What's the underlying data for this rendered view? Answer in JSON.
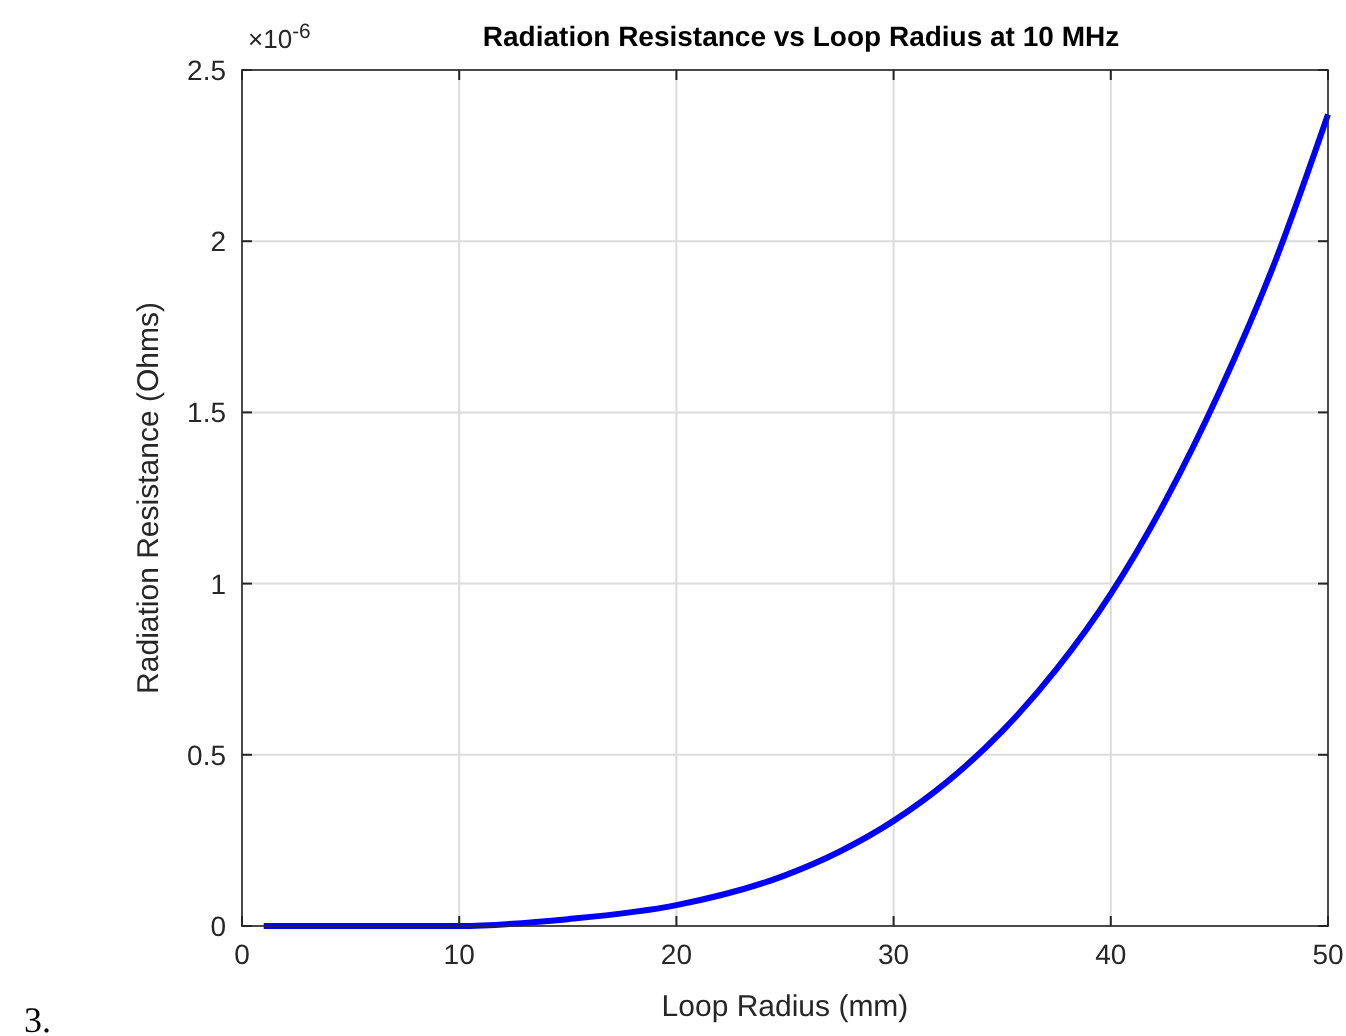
{
  "chart_data": {
    "type": "line",
    "title": "Radiation Resistance vs Loop Radius at 10 MHz",
    "xlabel": "Loop Radius (mm)",
    "ylabel": "Radiation Resistance (Ohms)",
    "annotations": [
      "×10$^{-6}$",
      "3."
    ],
    "x": [
      1,
      5,
      10,
      15,
      20,
      25,
      27.5,
      30,
      32.5,
      35,
      37.5,
      40,
      42.5,
      45,
      47.5,
      50
    ],
    "series": [
      {
        "color": "#0000ff",
        "values": [
          0,
          0,
          0,
          0.02,
          0.061,
          0.148,
          0.217,
          0.307,
          0.423,
          0.569,
          0.75,
          0.97,
          1.24,
          1.56,
          1.93,
          2.37
        ]
      }
    ],
    "xlim": [
      0,
      50
    ],
    "xticks": [
      0,
      10,
      20,
      30,
      40,
      50
    ],
    "ylim": [
      0,
      2.5
    ],
    "yticks": [
      0,
      0.5,
      1,
      1.5,
      2,
      2.5
    ],
    "grid": true,
    "marker": "none",
    "line_style": "solid"
  }
}
